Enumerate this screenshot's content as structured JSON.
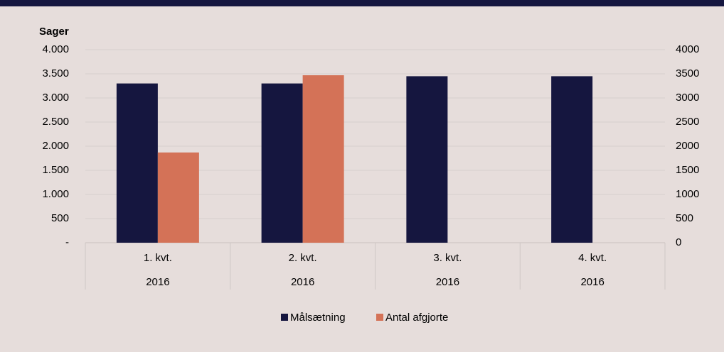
{
  "chart_data": {
    "type": "bar",
    "y_axis_label": "Sager",
    "categories": [
      "1. kvt.",
      "2. kvt.",
      "3. kvt.",
      "4. kvt."
    ],
    "category_groups": [
      "2016",
      "2016",
      "2016",
      "2016"
    ],
    "series": [
      {
        "name": "Målsætning",
        "color": "#15163f",
        "values": [
          3300,
          3300,
          3450,
          3450
        ]
      },
      {
        "name": "Antal afgjorte",
        "color": "#d47257",
        "values": [
          1870,
          3470,
          null,
          null
        ]
      }
    ],
    "ylim": [
      0,
      4000
    ],
    "yticks": [
      {
        "value": 0,
        "label": "-"
      },
      500,
      {
        "value": 1000,
        "label": "1.000"
      },
      {
        "value": 1500,
        "label": "1.500"
      },
      {
        "value": 2000,
        "label": "2.000"
      },
      {
        "value": 2500,
        "label": "2.500"
      },
      {
        "value": 3000,
        "label": "3.000"
      },
      {
        "value": 3500,
        "label": "3.500"
      },
      {
        "value": 4000,
        "label": "4.000"
      }
    ],
    "y2lim": [
      0,
      4000
    ],
    "y2ticks": [
      0,
      500,
      1000,
      1500,
      2000,
      2500,
      3000,
      3500,
      4000
    ],
    "grid": true,
    "legend": "bottom"
  }
}
